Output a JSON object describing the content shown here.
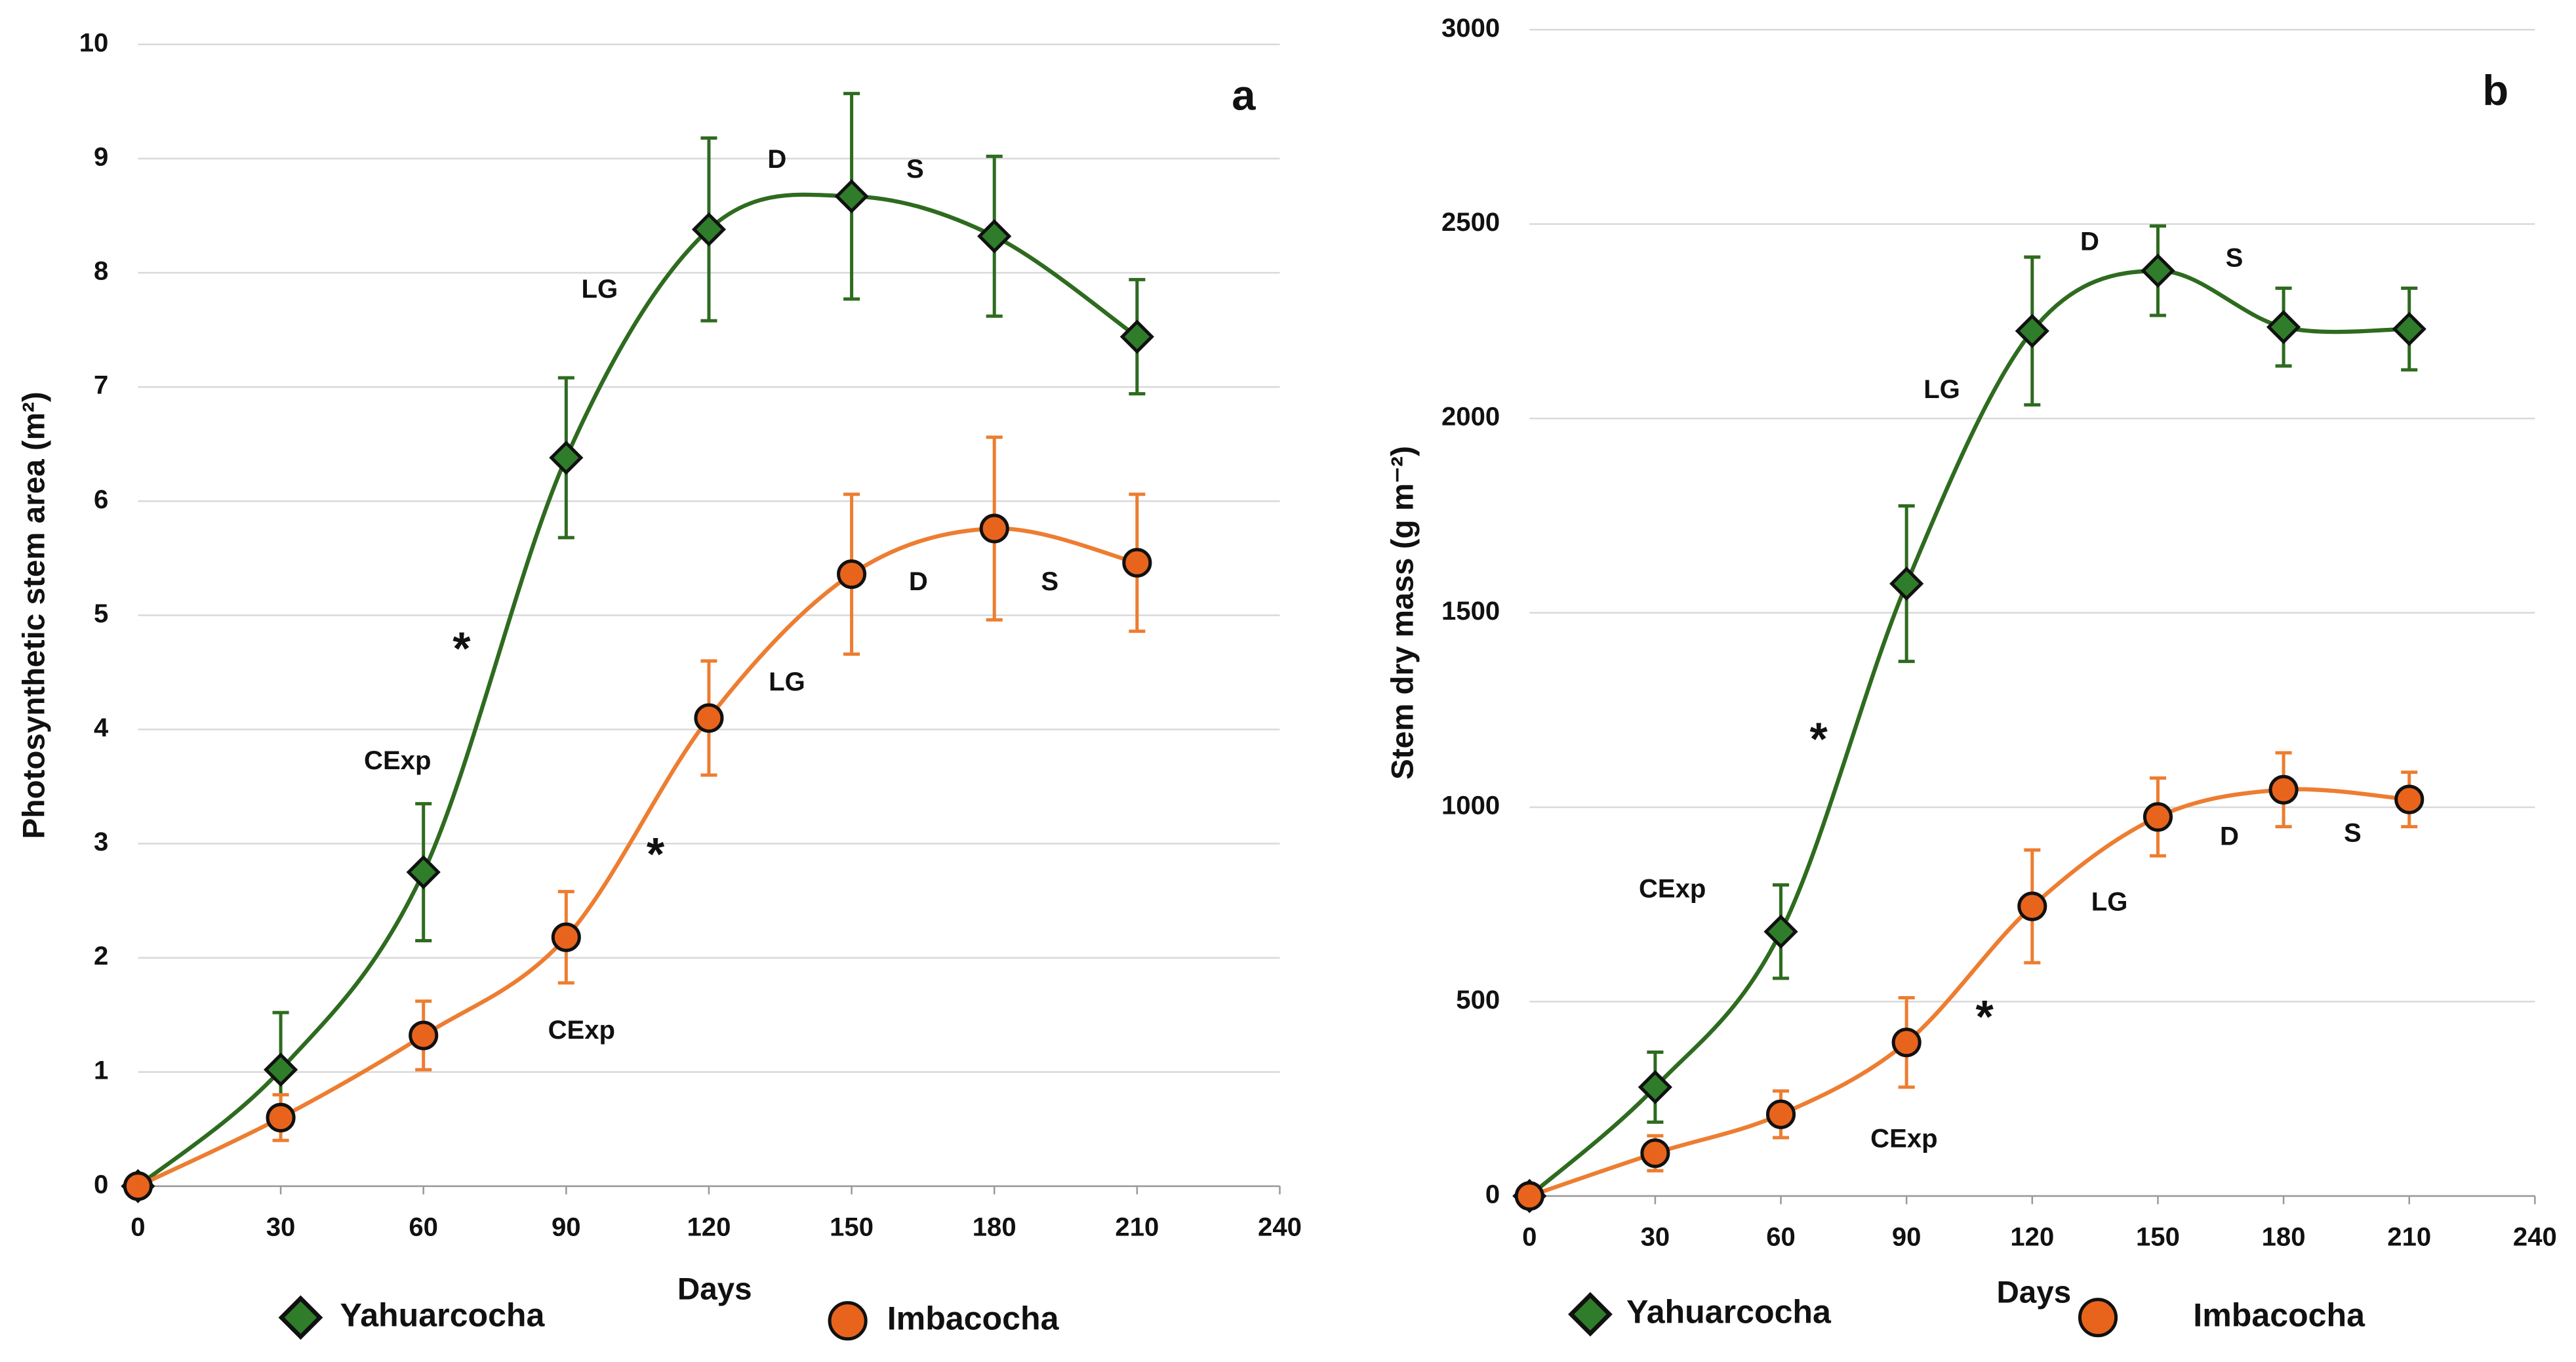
{
  "chart_data": [
    {
      "type": "line",
      "panel": "a",
      "x_label": "Days",
      "y_label": "Photosynthetic stem area (m²)",
      "x": [
        0,
        30,
        60,
        90,
        120,
        150,
        180,
        210
      ],
      "xlim": [
        0,
        240
      ],
      "xticks": [
        0,
        30,
        60,
        90,
        120,
        150,
        180,
        210,
        240
      ],
      "ylim": [
        0,
        10
      ],
      "yticks": [
        0,
        1,
        2,
        3,
        4,
        5,
        6,
        7,
        8,
        9,
        10
      ],
      "grid": true,
      "series": [
        {
          "name": "Yahuarcocha",
          "color": "#2e6b1f",
          "marker": "diamond",
          "values": [
            0,
            1.02,
            2.75,
            6.38,
            8.38,
            8.67,
            8.32,
            7.44
          ],
          "errors": [
            0,
            0.5,
            0.6,
            0.7,
            0.8,
            0.9,
            0.7,
            0.5
          ]
        },
        {
          "name": "Imbacocha",
          "color": "#ed7d31",
          "marker": "circle",
          "values": [
            0,
            0.6,
            1.32,
            2.18,
            4.1,
            5.36,
            5.76,
            5.46
          ],
          "errors": [
            0,
            0.2,
            0.3,
            0.4,
            0.5,
            0.7,
            0.8,
            0.6
          ]
        }
      ],
      "annotations": [
        {
          "text": "LG"
        },
        {
          "text": "D"
        },
        {
          "text": "S"
        },
        {
          "text": "CExp"
        },
        {
          "text": "*",
          "color": "#e8141b"
        },
        {
          "text": "CExp"
        },
        {
          "text": "*",
          "color": "#e8141b"
        },
        {
          "text": "LG"
        },
        {
          "text": "D"
        },
        {
          "text": "S"
        }
      ]
    },
    {
      "type": "line",
      "panel": "b",
      "x_label": "Days",
      "y_label": "Stem dry mass (g m⁻²)",
      "x": [
        0,
        30,
        60,
        90,
        120,
        150,
        180,
        210
      ],
      "xlim": [
        0,
        240
      ],
      "xticks": [
        0,
        30,
        60,
        90,
        120,
        150,
        180,
        210,
        240
      ],
      "ylim": [
        0,
        3000
      ],
      "yticks": [
        0,
        500,
        1000,
        1500,
        2000,
        2500,
        3000
      ],
      "grid": true,
      "series": [
        {
          "name": "Yahuarcocha",
          "color": "#2e6b1f",
          "marker": "diamond",
          "values": [
            0,
            280,
            680,
            1575,
            2225,
            2380,
            2235,
            2230
          ],
          "errors": [
            0,
            90,
            120,
            200,
            190,
            115,
            100,
            105
          ]
        },
        {
          "name": "Imbacocha",
          "color": "#ed7d31",
          "marker": "circle",
          "values": [
            0,
            110,
            210,
            395,
            745,
            975,
            1045,
            1020
          ],
          "errors": [
            0,
            45,
            60,
            115,
            145,
            100,
            95,
            70
          ]
        }
      ],
      "annotations": [
        {
          "text": "D"
        },
        {
          "text": "S"
        },
        {
          "text": "LG"
        },
        {
          "text": "*",
          "color": "#e8141b"
        },
        {
          "text": "CExp"
        },
        {
          "text": "CExp"
        },
        {
          "text": "*",
          "color": "#e8141b"
        },
        {
          "text": "LG"
        },
        {
          "text": "D"
        },
        {
          "text": "S"
        }
      ]
    }
  ]
}
